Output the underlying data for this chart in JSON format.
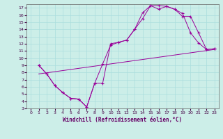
{
  "xlabel": "Windchill (Refroidissement éolien,°C)",
  "bg_color": "#cceee8",
  "grid_color": "#aadddd",
  "line_color": "#990099",
  "axis_label_color": "#660066",
  "xlim": [
    -0.5,
    23.5
  ],
  "ylim": [
    3,
    17.5
  ],
  "xticks": [
    0,
    1,
    2,
    3,
    4,
    5,
    6,
    7,
    8,
    9,
    10,
    11,
    12,
    13,
    14,
    15,
    16,
    17,
    18,
    19,
    20,
    21,
    22,
    23
  ],
  "yticks": [
    3,
    4,
    5,
    6,
    7,
    8,
    9,
    10,
    11,
    12,
    13,
    14,
    15,
    16,
    17
  ],
  "line1": {
    "x": [
      1,
      2,
      3,
      4,
      5,
      6,
      7,
      8,
      9,
      10,
      11,
      12,
      13,
      14,
      15,
      16,
      17,
      18,
      19,
      20,
      21,
      22,
      23
    ],
    "y": [
      9.0,
      7.8,
      6.2,
      5.2,
      4.4,
      4.3,
      3.2,
      6.5,
      9.2,
      11.8,
      12.2,
      12.5,
      14.0,
      15.5,
      17.3,
      17.3,
      17.2,
      16.8,
      16.2,
      13.5,
      12.1,
      11.2,
      11.3
    ]
  },
  "line2": {
    "x": [
      1,
      2,
      3,
      4,
      5,
      6,
      7,
      8,
      9,
      10,
      11,
      12,
      13,
      14,
      15,
      16,
      17,
      18,
      19,
      20,
      21,
      22,
      23
    ],
    "y": [
      9.0,
      7.8,
      6.2,
      5.2,
      4.4,
      4.3,
      3.2,
      6.5,
      6.5,
      12.0,
      12.2,
      12.5,
      14.0,
      16.3,
      17.3,
      16.8,
      17.2,
      16.8,
      15.8,
      15.8,
      13.5,
      11.2,
      11.3
    ]
  },
  "line3": {
    "x": [
      1,
      23
    ],
    "y": [
      7.8,
      11.2
    ]
  }
}
